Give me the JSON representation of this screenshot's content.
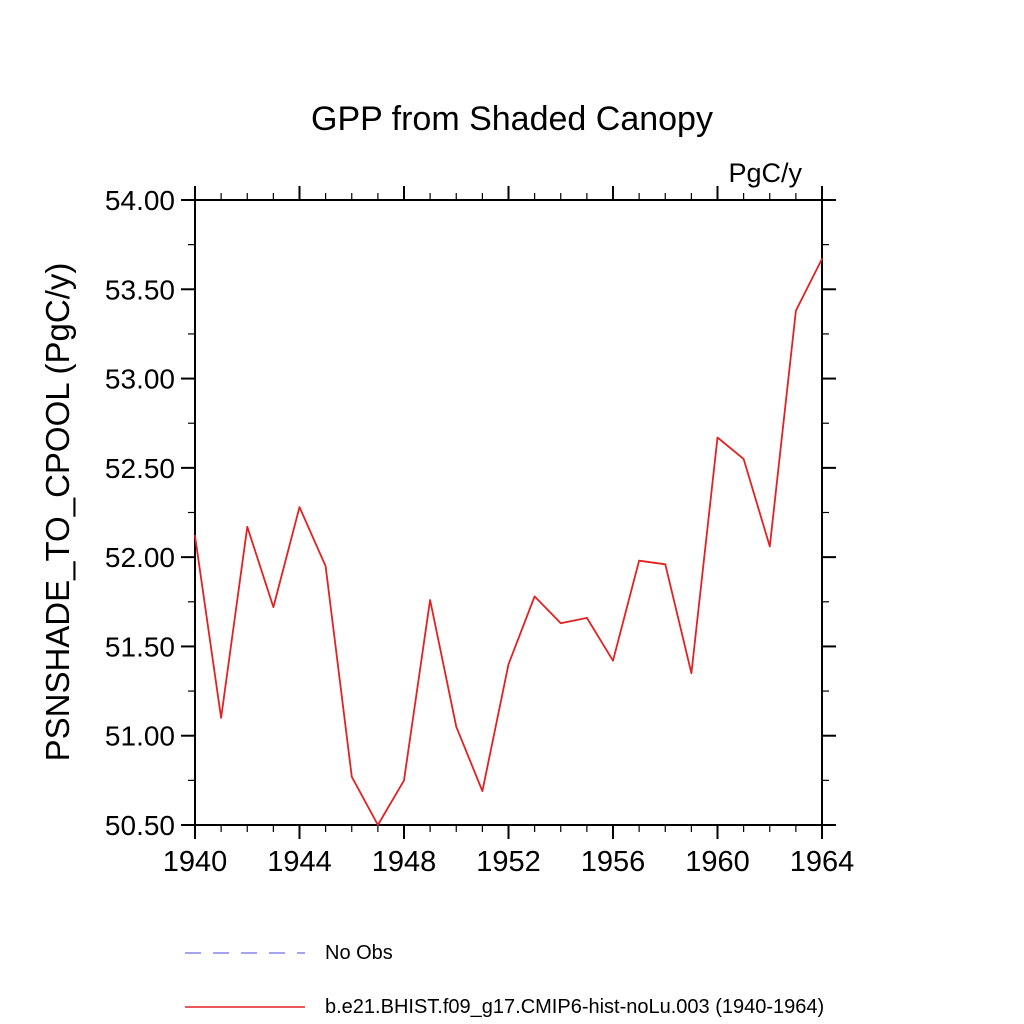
{
  "title": "GPP from Shaded Canopy",
  "unit_label": "PgC/y",
  "y_axis_title": "PSNSHADE_TO_CPOOL (PgC/y)",
  "legend": {
    "no_obs": {
      "label": "No Obs",
      "color": "#8585ee",
      "style": "dashed"
    },
    "series": {
      "label": "b.e21.BHIST.f09_g17.CMIP6-hist-noLu.003 (1940-1964)",
      "color": "#e22222",
      "style": "solid"
    }
  },
  "chart_data": {
    "type": "line",
    "title": "GPP from Shaded Canopy",
    "ylabel": "PSNSHADE_TO_CPOOL (PgC/y)",
    "unit": "PgC/y",
    "x": [
      1940,
      1941,
      1942,
      1943,
      1944,
      1945,
      1946,
      1947,
      1948,
      1949,
      1950,
      1951,
      1952,
      1953,
      1954,
      1955,
      1956,
      1957,
      1958,
      1959,
      1960,
      1961,
      1962,
      1963,
      1964
    ],
    "series": [
      {
        "name": "b.e21.BHIST.f09_g17.CMIP6-hist-noLu.003 (1940-1964)",
        "color": "#e22222",
        "values": [
          52.12,
          51.1,
          52.17,
          51.72,
          52.28,
          51.95,
          50.77,
          50.5,
          50.75,
          51.76,
          51.05,
          50.69,
          51.4,
          51.78,
          51.63,
          51.66,
          51.42,
          51.98,
          51.96,
          51.35,
          52.67,
          52.55,
          52.06,
          53.38,
          53.67
        ]
      }
    ],
    "xlim": [
      1940,
      1964
    ],
    "ylim": [
      50.5,
      54.0
    ],
    "x_major_step": 4,
    "x_minor_step": 1,
    "y_major_step": 0.5,
    "y_minor_step": 0.25,
    "x_tick_labels": [
      "1940",
      "1944",
      "1948",
      "1952",
      "1956",
      "1960",
      "1964"
    ],
    "y_tick_labels": [
      "50.50",
      "51.00",
      "51.50",
      "52.00",
      "52.50",
      "53.00",
      "53.50",
      "54.00"
    ],
    "grid": false,
    "legend_position": "bottom-left"
  }
}
